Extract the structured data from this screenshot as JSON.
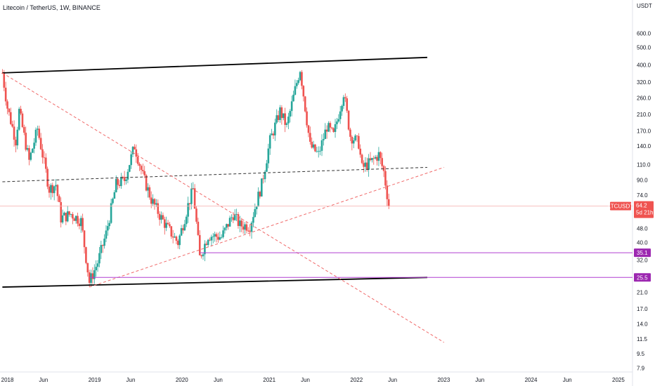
{
  "chart_data": {
    "type": "candlestick",
    "title": "Litecoin / TetherUS, 1W, BINANCE",
    "y_scale": "log",
    "y_unit": "USDT",
    "y_ticks": [
      600.0,
      500.0,
      400.0,
      320.0,
      260.0,
      210.0,
      170.0,
      140.0,
      110.0,
      90.0,
      74.0,
      48.0,
      40.0,
      32.0,
      21.0,
      17.0,
      14.0,
      11.5,
      9.5,
      7.9
    ],
    "ylim": [
      7.5,
      800
    ],
    "x_ticks": [
      {
        "label": "2018",
        "date": "2018-01-01"
      },
      {
        "label": "Jun",
        "date": "2018-06-01"
      },
      {
        "label": "2019",
        "date": "2019-01-01"
      },
      {
        "label": "Jun",
        "date": "2019-06-01"
      },
      {
        "label": "2020",
        "date": "2020-01-01"
      },
      {
        "label": "Jun",
        "date": "2020-06-01"
      },
      {
        "label": "2021",
        "date": "2021-01-01"
      },
      {
        "label": "Jun",
        "date": "2021-06-01"
      },
      {
        "label": "2022",
        "date": "2022-01-01"
      },
      {
        "label": "Jun",
        "date": "2022-06-01"
      },
      {
        "label": "2023",
        "date": "2023-01-01"
      },
      {
        "label": "Jun",
        "date": "2023-06-01"
      },
      {
        "label": "2024",
        "date": "2024-01-01"
      },
      {
        "label": "Jun",
        "date": "2024-06-01"
      },
      {
        "label": "2025",
        "date": "2025-01-01"
      }
    ],
    "xlim": [
      "2017-12-01",
      "2025-03-01"
    ],
    "price_path": [
      [
        "2017-12-11",
        360
      ],
      [
        "2018-01-01",
        230
      ],
      [
        "2018-02-05",
        150
      ],
      [
        "2018-02-19",
        220
      ],
      [
        "2018-04-02",
        115
      ],
      [
        "2018-05-07",
        175
      ],
      [
        "2018-06-25",
        80
      ],
      [
        "2018-07-23",
        85
      ],
      [
        "2018-08-13",
        55
      ],
      [
        "2018-09-24",
        58
      ],
      [
        "2018-11-05",
        53
      ],
      [
        "2018-12-10",
        24
      ],
      [
        "2019-01-14",
        31
      ],
      [
        "2019-02-18",
        45
      ],
      [
        "2019-04-01",
        85
      ],
      [
        "2019-05-06",
        90
      ],
      [
        "2019-06-17",
        140
      ],
      [
        "2019-07-22",
        95
      ],
      [
        "2019-08-26",
        70
      ],
      [
        "2019-10-07",
        55
      ],
      [
        "2019-11-04",
        48
      ],
      [
        "2019-12-16",
        40
      ],
      [
        "2020-01-27",
        65
      ],
      [
        "2020-02-17",
        80
      ],
      [
        "2020-03-16",
        33
      ],
      [
        "2020-04-20",
        44
      ],
      [
        "2020-06-15",
        43
      ],
      [
        "2020-08-03",
        58
      ],
      [
        "2020-08-31",
        50
      ],
      [
        "2020-10-12",
        50
      ],
      [
        "2020-11-30",
        85
      ],
      [
        "2021-01-04",
        150
      ],
      [
        "2021-02-15",
        220
      ],
      [
        "2021-03-15",
        180
      ],
      [
        "2021-04-19",
        290
      ],
      [
        "2021-05-10",
        380
      ],
      [
        "2021-06-21",
        140
      ],
      [
        "2021-07-26",
        125
      ],
      [
        "2021-08-30",
        180
      ],
      [
        "2021-09-27",
        160
      ],
      [
        "2021-11-08",
        280
      ],
      [
        "2021-12-06",
        160
      ],
      [
        "2022-01-10",
        145
      ],
      [
        "2022-01-24",
        105
      ],
      [
        "2022-03-07",
        115
      ],
      [
        "2022-04-04",
        125
      ],
      [
        "2022-04-25",
        100
      ],
      [
        "2022-05-09",
        75
      ],
      [
        "2022-05-16",
        64.2
      ]
    ],
    "channel_top": {
      "from": [
        "2017-12-11",
        360
      ],
      "to": [
        "2022-10-24",
        440
      ]
    },
    "channel_bottom": {
      "from": [
        "2017-12-11",
        22.5
      ],
      "to": [
        "2022-10-24",
        25.5
      ]
    },
    "midline": {
      "from": [
        "2017-12-11",
        88
      ],
      "to": [
        "2022-10-24",
        106
      ]
    },
    "descending_trendline": {
      "from": [
        "2017-12-11",
        360
      ],
      "to": [
        "2023-01-02",
        11
      ]
    },
    "ascending_trendline": {
      "from": [
        "2018-12-10",
        22.5
      ],
      "to": [
        "2023-01-02",
        106
      ]
    },
    "horizontal_levels": [
      {
        "value": 35.1,
        "label": "35.1",
        "from": "2020-03-16"
      },
      {
        "value": 25.5,
        "label": "25.5",
        "from": "2018-12-10"
      }
    ],
    "last_price": {
      "symbol": "LTCUSDT",
      "value": 64.2,
      "label": "64.2",
      "countdown": "5d 21h"
    },
    "colors": {
      "up": "#26a69a",
      "down": "#ef5350",
      "channel": "#000000",
      "trend_dashed": "#f06a6a",
      "midline": "#333333",
      "level": "#b13fd1",
      "level_badge": "#9c27b0",
      "price_badge": "#ef5350",
      "axis_text": "#131722"
    }
  }
}
